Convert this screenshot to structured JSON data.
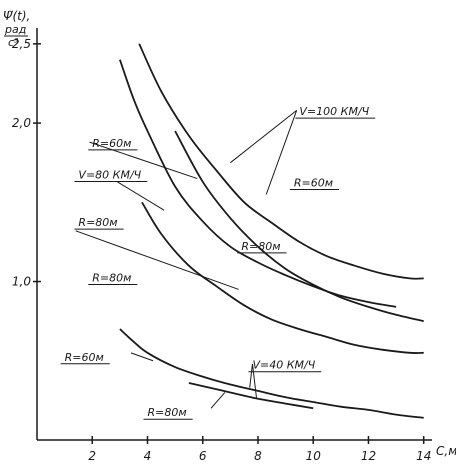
{
  "chart_data": {
    "type": "line",
    "title": "",
    "ylabel": "Ψ̈(t),",
    "ylabel_unit_num": "рад",
    "ylabel_unit_den": "с³",
    "xlabel": "С,м",
    "xlim": [
      0,
      14.3
    ],
    "ylim": [
      0,
      2.6
    ],
    "x_ticks": [
      "2",
      "4",
      "6",
      "8",
      "10",
      "12",
      "14"
    ],
    "y_ticks": [
      "1,0",
      "2,0",
      "2,5"
    ],
    "y_tick_values": [
      1.0,
      2.0,
      2.5
    ],
    "grid": false,
    "series": [
      {
        "name": "V=100 км/ч, R=60м",
        "x": [
          3.7,
          4.5,
          5.5,
          6.5,
          7.5,
          8.5,
          9.5,
          10.5,
          11.5,
          12.5,
          13.5,
          14.0
        ],
        "y": [
          2.5,
          2.2,
          1.92,
          1.7,
          1.5,
          1.37,
          1.25,
          1.16,
          1.1,
          1.05,
          1.02,
          1.02
        ]
      },
      {
        "name": "V=100 км/ч, R=80м",
        "x": [
          5.0,
          6.0,
          7.0,
          8.0,
          9.0,
          10.0,
          11.0,
          12.0,
          13.0,
          14.0
        ],
        "y": [
          1.95,
          1.63,
          1.4,
          1.22,
          1.08,
          0.98,
          0.9,
          0.84,
          0.79,
          0.75
        ]
      },
      {
        "name": "V=80 км/ч, R=60м",
        "x": [
          3.0,
          3.5,
          4.0,
          5.0,
          6.0,
          7.0,
          8.0,
          9.0,
          10.0,
          11.0,
          12.0,
          13.0
        ],
        "y": [
          2.4,
          2.15,
          1.95,
          1.6,
          1.38,
          1.22,
          1.12,
          1.04,
          0.97,
          0.91,
          0.87,
          0.84
        ]
      },
      {
        "name": "V=80 км/ч, R=80м",
        "x": [
          3.8,
          4.5,
          5.5,
          6.5,
          7.5,
          8.5,
          9.5,
          10.5,
          11.5,
          12.5,
          13.5,
          14.0
        ],
        "y": [
          1.5,
          1.3,
          1.1,
          0.97,
          0.85,
          0.76,
          0.7,
          0.65,
          0.6,
          0.57,
          0.55,
          0.55
        ]
      },
      {
        "name": "V=40 км/ч, R=60м",
        "x": [
          3.0,
          3.5,
          4.0,
          5.0,
          6.0,
          7.0,
          8.0,
          9.0,
          10.0,
          11.0,
          12.0,
          13.0,
          14.0
        ],
        "y": [
          0.7,
          0.62,
          0.55,
          0.46,
          0.4,
          0.35,
          0.31,
          0.27,
          0.24,
          0.21,
          0.19,
          0.16,
          0.14
        ]
      },
      {
        "name": "V=40 км/ч, R=80м",
        "x": [
          5.5,
          6.0,
          7.0,
          8.0,
          9.0,
          10.0
        ],
        "y": [
          0.36,
          0.34,
          0.3,
          0.26,
          0.23,
          0.2
        ]
      }
    ],
    "annotations": [
      {
        "text": "V=100 КМ/Ч",
        "x": 9.5,
        "y": 2.05
      },
      {
        "text": "R=60м",
        "x": 9.3,
        "y": 1.6
      },
      {
        "text": "R=80м",
        "x": 7.4,
        "y": 1.2
      },
      {
        "text": "R=60м",
        "x": 2.0,
        "y": 1.85
      },
      {
        "text": "V=80 КМ/Ч",
        "x": 1.5,
        "y": 1.65
      },
      {
        "text": "R=80м",
        "x": 1.5,
        "y": 1.35
      },
      {
        "text": "R=80м",
        "x": 2.0,
        "y": 1.0
      },
      {
        "text": "R=60м",
        "x": 1.0,
        "y": 0.5
      },
      {
        "text": "V=40 КМ/Ч",
        "x": 7.8,
        "y": 0.45
      },
      {
        "text": "R=80м",
        "x": 4.0,
        "y": 0.15
      }
    ]
  }
}
